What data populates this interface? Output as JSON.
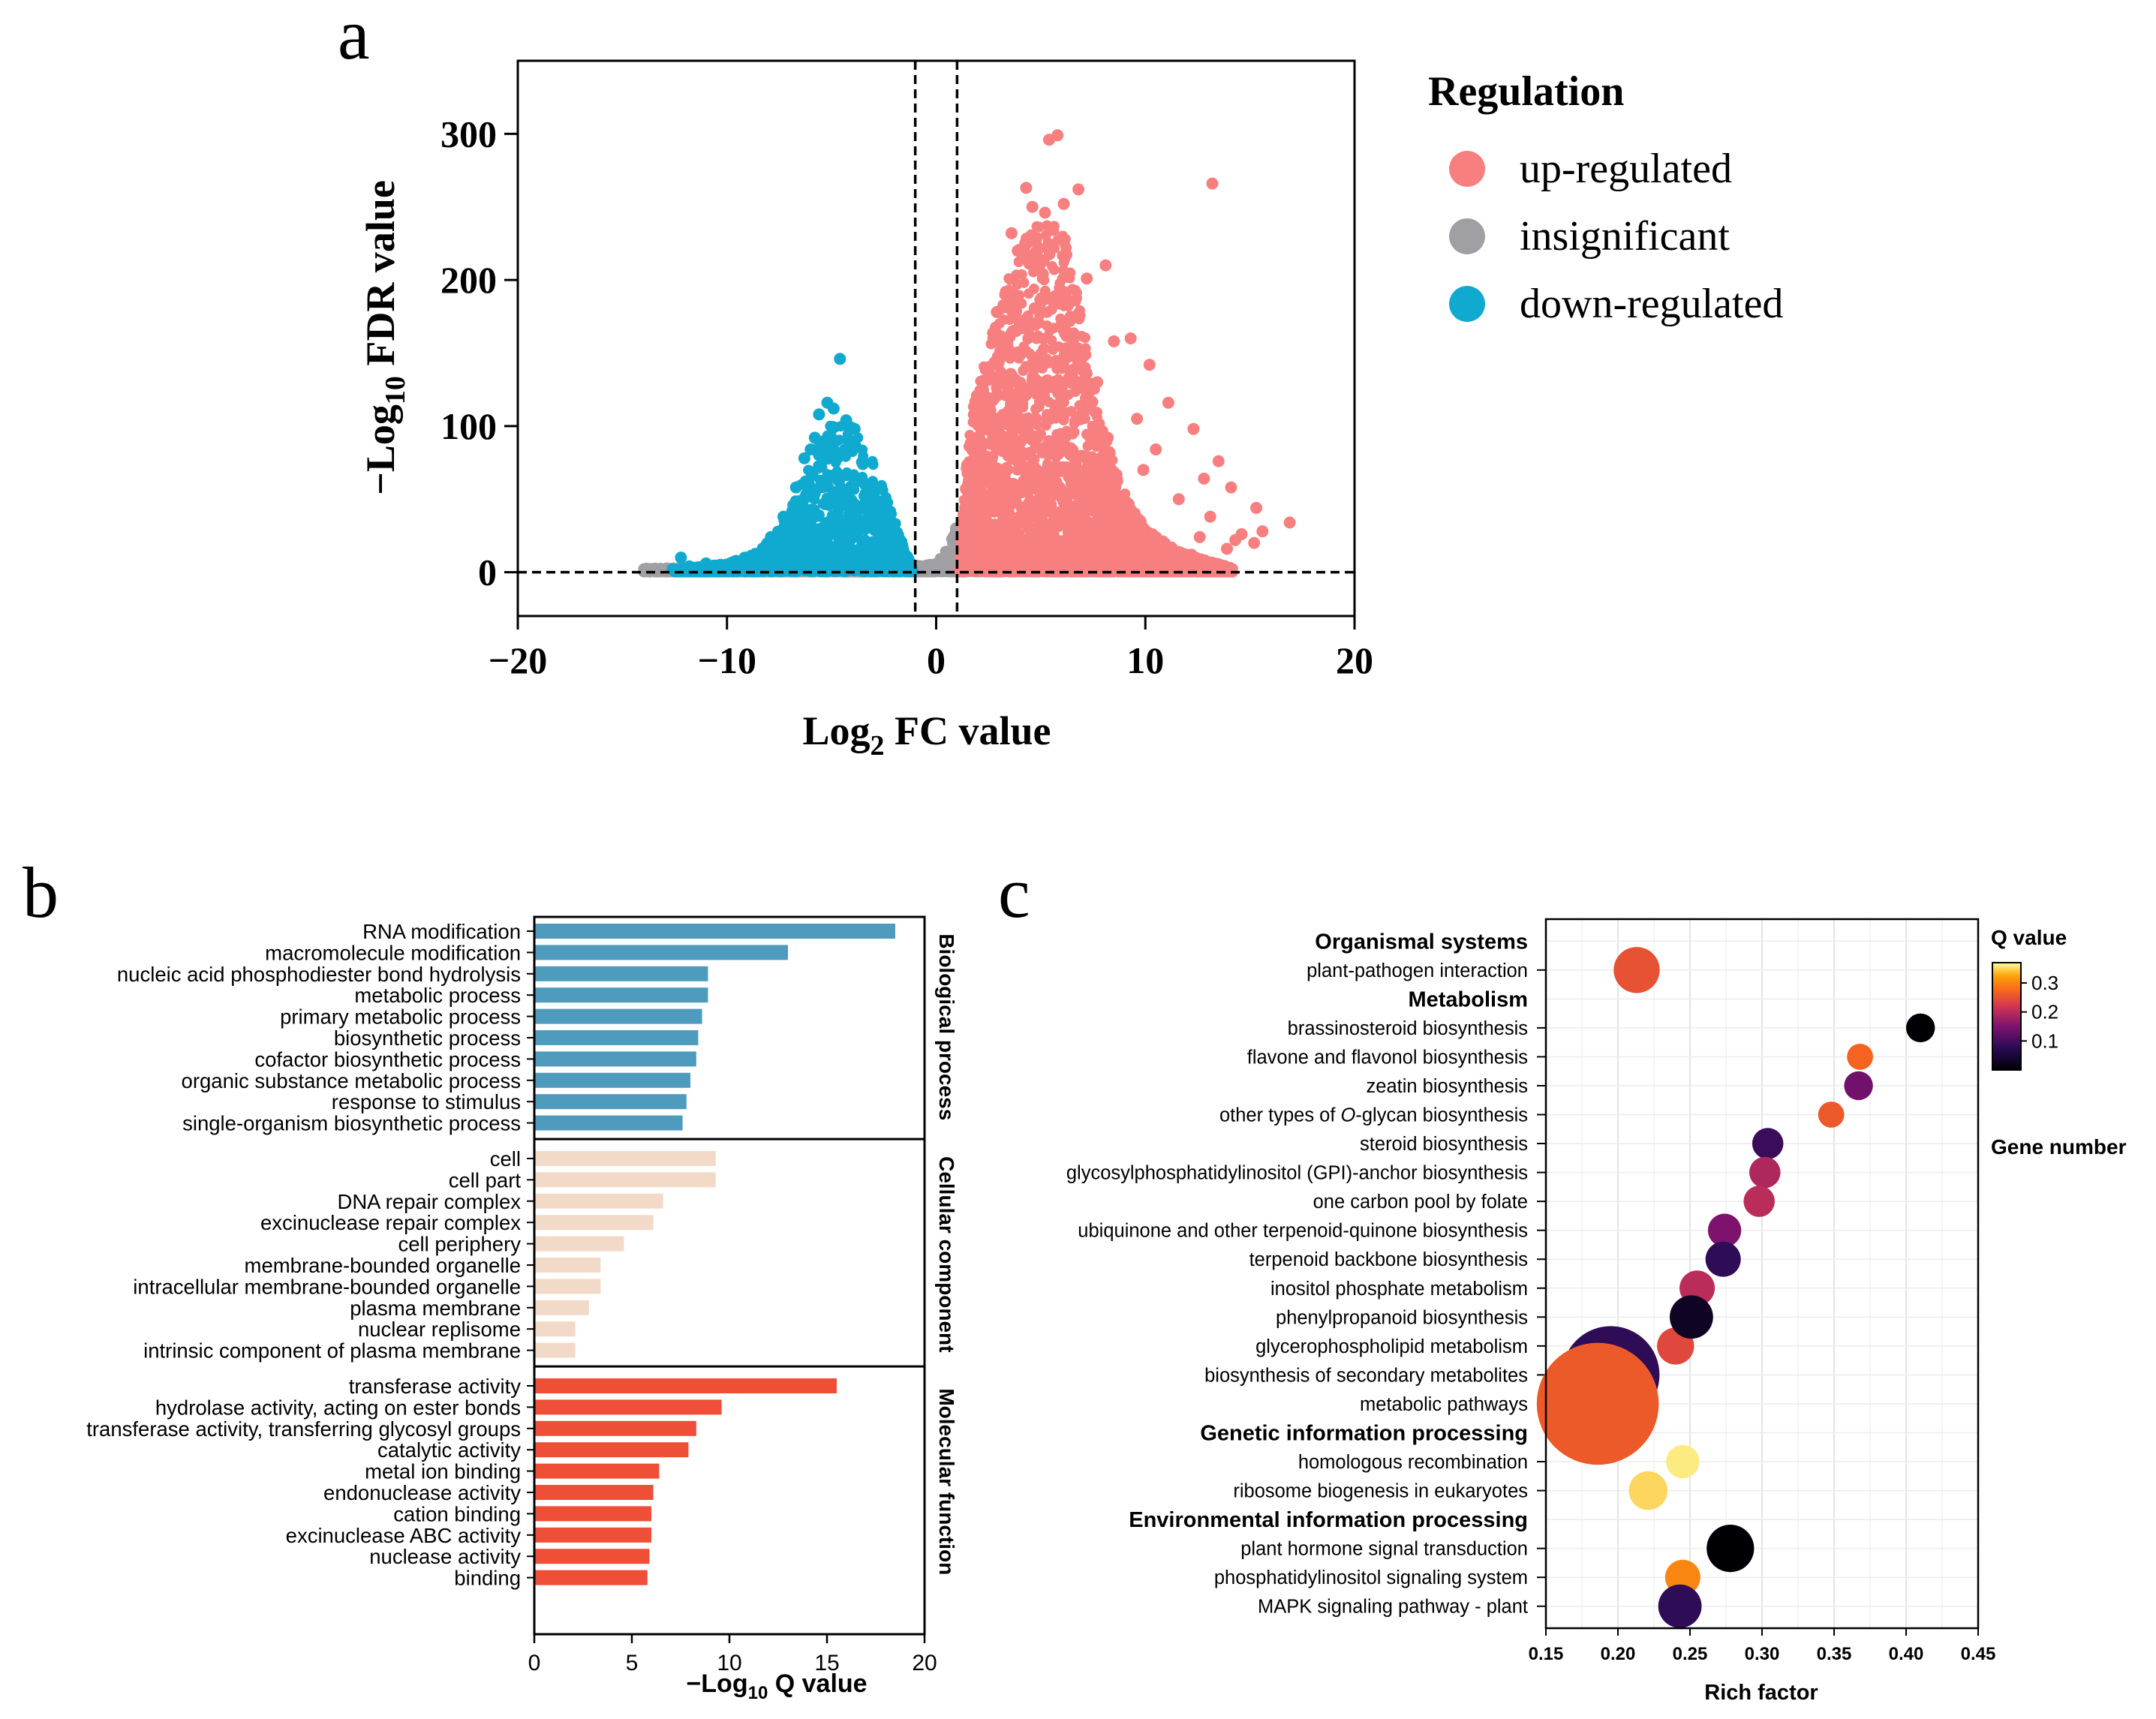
{
  "panel_labels": {
    "a": "a",
    "b": "b",
    "c": "c"
  },
  "chart_data": [
    {
      "panel": "a",
      "type": "scatter",
      "subtype": "volcano",
      "title": "",
      "xlabel_main": "Log",
      "xlabel_sub": "2",
      "xlabel_rest": " FC value",
      "ylabel_main": "−Log",
      "ylabel_sub": "10",
      "ylabel_rest": " FDR value",
      "xlim": [
        -20,
        20
      ],
      "ylim": [
        -30,
        350
      ],
      "xticks": [
        -20,
        -10,
        0,
        10,
        20
      ],
      "xtick_labels": [
        "−20",
        "−10",
        "0",
        "10",
        "20"
      ],
      "yticks": [
        0,
        100,
        200,
        300
      ],
      "ytick_labels": [
        "0",
        "100",
        "200",
        "300"
      ],
      "thresholds": {
        "x": [
          -1,
          1
        ],
        "y": 0
      },
      "legend": {
        "title": "Regulation",
        "position": "right",
        "entries": [
          {
            "label": "up-regulated",
            "color": "#f77f7f"
          },
          {
            "label": "insignificant",
            "color": "#a0a0a4"
          },
          {
            "label": "down-regulated",
            "color": "#10a9cf"
          }
        ]
      },
      "series": [
        {
          "name": "up-regulated",
          "color": "#f77f7f",
          "points": [
            [
              5.8,
              299
            ],
            [
              5.4,
              296
            ],
            [
              13.2,
              266
            ],
            [
              4.3,
              263
            ],
            [
              6.8,
              262
            ],
            [
              4.6,
              250
            ],
            [
              3.6,
              232
            ],
            [
              6.1,
              252
            ],
            [
              5.2,
              246
            ],
            [
              3.9,
              220
            ],
            [
              4.7,
              212
            ],
            [
              5.1,
              204
            ],
            [
              3.3,
              190
            ],
            [
              7.2,
              201
            ],
            [
              8.1,
              210
            ],
            [
              2.9,
              178
            ],
            [
              6.4,
              172
            ],
            [
              4.0,
              168
            ],
            [
              8.5,
              158
            ],
            [
              9.3,
              160
            ],
            [
              3.1,
              150
            ],
            [
              10.2,
              142
            ],
            [
              2.6,
              132
            ],
            [
              7.7,
              130
            ],
            [
              11.1,
              116
            ],
            [
              9.6,
              105
            ],
            [
              12.3,
              98
            ],
            [
              8.2,
              92
            ],
            [
              10.5,
              84
            ],
            [
              13.5,
              76
            ],
            [
              9.9,
              70
            ],
            [
              12.8,
              64
            ],
            [
              14.1,
              58
            ],
            [
              11.6,
              50
            ],
            [
              15.3,
              44
            ],
            [
              13.1,
              38
            ],
            [
              16.9,
              34
            ],
            [
              14.6,
              26
            ],
            [
              15.2,
              20
            ],
            [
              13.9,
              16
            ],
            [
              12.2,
              12
            ],
            [
              11.3,
              10
            ],
            [
              10.4,
              8
            ],
            [
              12.9,
              6
            ],
            [
              14.3,
              22
            ],
            [
              15.6,
              28
            ],
            [
              9.1,
              14
            ],
            [
              8.7,
              22
            ],
            [
              10.9,
              18
            ],
            [
              12.6,
              24
            ]
          ],
          "envelope": [
            [
              1.1,
              3
            ],
            [
              1.3,
              55
            ],
            [
              1.7,
              110
            ],
            [
              2.4,
              150
            ],
            [
              3.3,
              195
            ],
            [
              4.3,
              235
            ],
            [
              5.3,
              250
            ],
            [
              6.3,
              225
            ],
            [
              7.0,
              170
            ],
            [
              7.8,
              110
            ],
            [
              8.8,
              60
            ],
            [
              10,
              30
            ],
            [
              11.5,
              15
            ],
            [
              13,
              8
            ],
            [
              14.2,
              3
            ]
          ]
        },
        {
          "name": "insignificant",
          "color": "#a0a0a4",
          "points": [
            [
              -13.7,
              2
            ],
            [
              -12.8,
              2
            ],
            [
              -11.5,
              1
            ],
            [
              -10.2,
              2
            ],
            [
              -8.9,
              1
            ],
            [
              -7.4,
              2
            ],
            [
              -6.1,
              1
            ],
            [
              -4.8,
              2
            ],
            [
              -3.5,
              2
            ],
            [
              -2.2,
              3
            ],
            [
              -1.1,
              4
            ],
            [
              -0.3,
              5
            ],
            [
              0.2,
              8
            ],
            [
              0.5,
              14
            ],
            [
              0.8,
              22
            ],
            [
              0.95,
              30
            ],
            [
              1.5,
              1
            ],
            [
              3.0,
              2
            ],
            [
              4.5,
              1
            ],
            [
              6.0,
              2
            ],
            [
              7.5,
              1
            ],
            [
              9.0,
              2
            ],
            [
              10.5,
              1
            ],
            [
              11.8,
              2
            ],
            [
              12.9,
              1
            ]
          ],
          "envelope": [
            [
              -14,
              0
            ],
            [
              -14,
              3
            ],
            [
              -8,
              4
            ],
            [
              -2,
              4
            ],
            [
              0,
              6
            ],
            [
              0.6,
              18
            ],
            [
              0.95,
              32
            ],
            [
              1.0,
              10
            ],
            [
              6,
              3
            ],
            [
              12.7,
              2
            ],
            [
              12.7,
              0
            ]
          ]
        },
        {
          "name": "down-regulated",
          "color": "#10a9cf",
          "points": [
            [
              -4.6,
              146
            ],
            [
              -5.2,
              116
            ],
            [
              -4.9,
              112
            ],
            [
              -5.6,
              108
            ],
            [
              -4.3,
              104
            ],
            [
              -3.9,
              98
            ],
            [
              -5.8,
              92
            ],
            [
              -4.1,
              88
            ],
            [
              -6.3,
              78
            ],
            [
              -3.5,
              74
            ],
            [
              -5.0,
              66
            ],
            [
              -6.7,
              58
            ],
            [
              -3.2,
              52
            ],
            [
              -4.4,
              46
            ],
            [
              -7.3,
              38
            ],
            [
              -2.6,
              32
            ],
            [
              -7.9,
              24
            ],
            [
              -2.1,
              18
            ],
            [
              -9.1,
              10
            ],
            [
              -8.4,
              12
            ],
            [
              -11.0,
              6
            ],
            [
              -12.2,
              10
            ],
            [
              -11.8,
              4
            ],
            [
              -10.3,
              5
            ],
            [
              -12.6,
              2
            ],
            [
              -9.6,
              6
            ],
            [
              -8.8,
              4
            ],
            [
              -1.5,
              6
            ],
            [
              -1.8,
              10
            ],
            [
              -6.0,
              84
            ]
          ],
          "envelope": [
            [
              -1.1,
              3
            ],
            [
              -1.6,
              20
            ],
            [
              -2.3,
              50
            ],
            [
              -3.0,
              75
            ],
            [
              -4.0,
              100
            ],
            [
              -5.0,
              102
            ],
            [
              -5.8,
              85
            ],
            [
              -6.6,
              55
            ],
            [
              -7.5,
              30
            ],
            [
              -8.5,
              14
            ],
            [
              -10,
              6
            ],
            [
              -12,
              3
            ],
            [
              -12.5,
              2
            ]
          ]
        }
      ]
    },
    {
      "panel": "b",
      "type": "bar",
      "orientation": "horizontal",
      "xlabel_main": "−Log",
      "xlabel_sub": "10",
      "xlabel_rest": " Q value",
      "xlim": [
        0,
        20
      ],
      "xticks": [
        0,
        5,
        10,
        15,
        20
      ],
      "xtick_labels": [
        "0",
        "5",
        "10",
        "15",
        "20"
      ],
      "groups": [
        {
          "name": "Biological process",
          "color": "#4e9bbd",
          "categories": [
            {
              "label": "RNA modification",
              "value": 18.5
            },
            {
              "label": "macromolecule modification",
              "value": 13.0
            },
            {
              "label": "nucleic acid phosphodiester bond hydrolysis",
              "value": 8.9
            },
            {
              "label": "metabolic process",
              "value": 8.9
            },
            {
              "label": "primary metabolic process",
              "value": 8.6
            },
            {
              "label": "biosynthetic process",
              "value": 8.4
            },
            {
              "label": "cofactor biosynthetic process",
              "value": 8.3
            },
            {
              "label": "organic substance metabolic process",
              "value": 8.0
            },
            {
              "label": "response to stimulus",
              "value": 7.8
            },
            {
              "label": "single-organism biosynthetic process",
              "value": 7.6
            }
          ]
        },
        {
          "name": "Cellular component",
          "color": "#f3dac8",
          "categories": [
            {
              "label": "cell",
              "value": 9.3
            },
            {
              "label": "cell part",
              "value": 9.3
            },
            {
              "label": "DNA repair complex",
              "value": 6.6
            },
            {
              "label": "excinuclease repair complex",
              "value": 6.1
            },
            {
              "label": "cell periphery",
              "value": 4.6
            },
            {
              "label": "membrane-bounded organelle",
              "value": 3.4
            },
            {
              "label": "intracellular membrane-bounded organelle",
              "value": 3.4
            },
            {
              "label": "plasma membrane",
              "value": 2.8
            },
            {
              "label": "nuclear replisome",
              "value": 2.1
            },
            {
              "label": "intrinsic component of plasma membrane",
              "value": 2.1
            }
          ]
        },
        {
          "name": "Molecular function",
          "color": "#ef4e37",
          "categories": [
            {
              "label": "transferase activity",
              "value": 15.5
            },
            {
              "label": "hydrolase activity, acting on ester bonds",
              "value": 9.6
            },
            {
              "label": "transferase activity, transferring glycosyl groups",
              "value": 8.3
            },
            {
              "label": "catalytic activity",
              "value": 7.9
            },
            {
              "label": "metal ion binding",
              "value": 6.4
            },
            {
              "label": "endonuclease activity",
              "value": 6.1
            },
            {
              "label": "cation binding",
              "value": 6.0
            },
            {
              "label": "excinuclease ABC activity",
              "value": 6.0
            },
            {
              "label": "nuclease activity",
              "value": 5.9
            },
            {
              "label": "binding",
              "value": 5.8
            }
          ]
        }
      ]
    },
    {
      "panel": "c",
      "type": "scatter",
      "subtype": "bubble",
      "xlabel": "Rich factor",
      "xlim": [
        0.15,
        0.45
      ],
      "xticks": [
        0.15,
        0.2,
        0.25,
        0.3,
        0.35,
        0.4,
        0.45
      ],
      "xtick_labels": [
        "0.15",
        "0.20",
        "0.25",
        "0.30",
        "0.35",
        "0.40",
        "0.45"
      ],
      "colorbar": {
        "title": "Q value",
        "range": [
          0,
          0.37
        ],
        "ticks": [
          0.1,
          0.2,
          0.3
        ],
        "tick_labels": [
          "0.1",
          "0.2",
          "0.3"
        ]
      },
      "size_legend_title": "Gene number",
      "rows": [
        {
          "label": "Organismal systems",
          "header": true
        },
        {
          "label": "plant-pathogen interaction",
          "rich": 0.213,
          "q": 0.25,
          "genes": 14
        },
        {
          "label": "Metabolism",
          "header": true
        },
        {
          "label": "brassinosteroid biosynthesis",
          "rich": 0.41,
          "q": 0.0,
          "genes": 4
        },
        {
          "label": "flavone and flavonol biosynthesis",
          "rich": 0.368,
          "q": 0.27,
          "genes": 3
        },
        {
          "label": "zeatin biosynthesis",
          "rich": 0.367,
          "q": 0.14,
          "genes": 4
        },
        {
          "label": "other types of ",
          "label_italic": "O",
          "label_rest": "-glycan biosynthesis",
          "rich": 0.348,
          "q": 0.26,
          "genes": 3
        },
        {
          "label": "steroid biosynthesis",
          "rich": 0.304,
          "q": 0.09,
          "genes": 5
        },
        {
          "label": "glycosylphosphatidylinositol (GPI)-anchor biosynthesis",
          "rich": 0.302,
          "q": 0.19,
          "genes": 5
        },
        {
          "label": "one carbon pool by folate",
          "rich": 0.298,
          "q": 0.2,
          "genes": 5
        },
        {
          "label": "ubiquinone and other terpenoid-quinone biosynthesis",
          "rich": 0.274,
          "q": 0.15,
          "genes": 6
        },
        {
          "label": "terpenoid backbone biosynthesis",
          "rich": 0.273,
          "q": 0.08,
          "genes": 7
        },
        {
          "label": "inositol phosphate metabolism",
          "rich": 0.255,
          "q": 0.2,
          "genes": 7
        },
        {
          "label": "phenylpropanoid biosynthesis",
          "rich": 0.251,
          "q": 0.03,
          "genes": 12
        },
        {
          "label": "glycerophospholipid metabolism",
          "rich": 0.24,
          "q": 0.24,
          "genes": 8
        },
        {
          "label": "biosynthesis of secondary metabolites",
          "rich": 0.195,
          "q": 0.08,
          "genes": 80
        },
        {
          "label": "metabolic pathways",
          "rich": 0.186,
          "q": 0.26,
          "genes": 130
        },
        {
          "label": "Genetic information processing",
          "header": true
        },
        {
          "label": "homologous recombination",
          "rich": 0.245,
          "q": 0.36,
          "genes": 6
        },
        {
          "label": "ribosome biogenesis in eukaryotes",
          "rich": 0.221,
          "q": 0.35,
          "genes": 9
        },
        {
          "label": "Environmental information processing",
          "header": true
        },
        {
          "label": "plant hormone signal transduction",
          "rich": 0.278,
          "q": 0.0,
          "genes": 15
        },
        {
          "label": "phosphatidylinositol signaling system",
          "rich": 0.245,
          "q": 0.3,
          "genes": 7
        },
        {
          "label": "MAPK signaling pathway - plant",
          "rich": 0.243,
          "q": 0.08,
          "genes": 12
        }
      ]
    }
  ]
}
